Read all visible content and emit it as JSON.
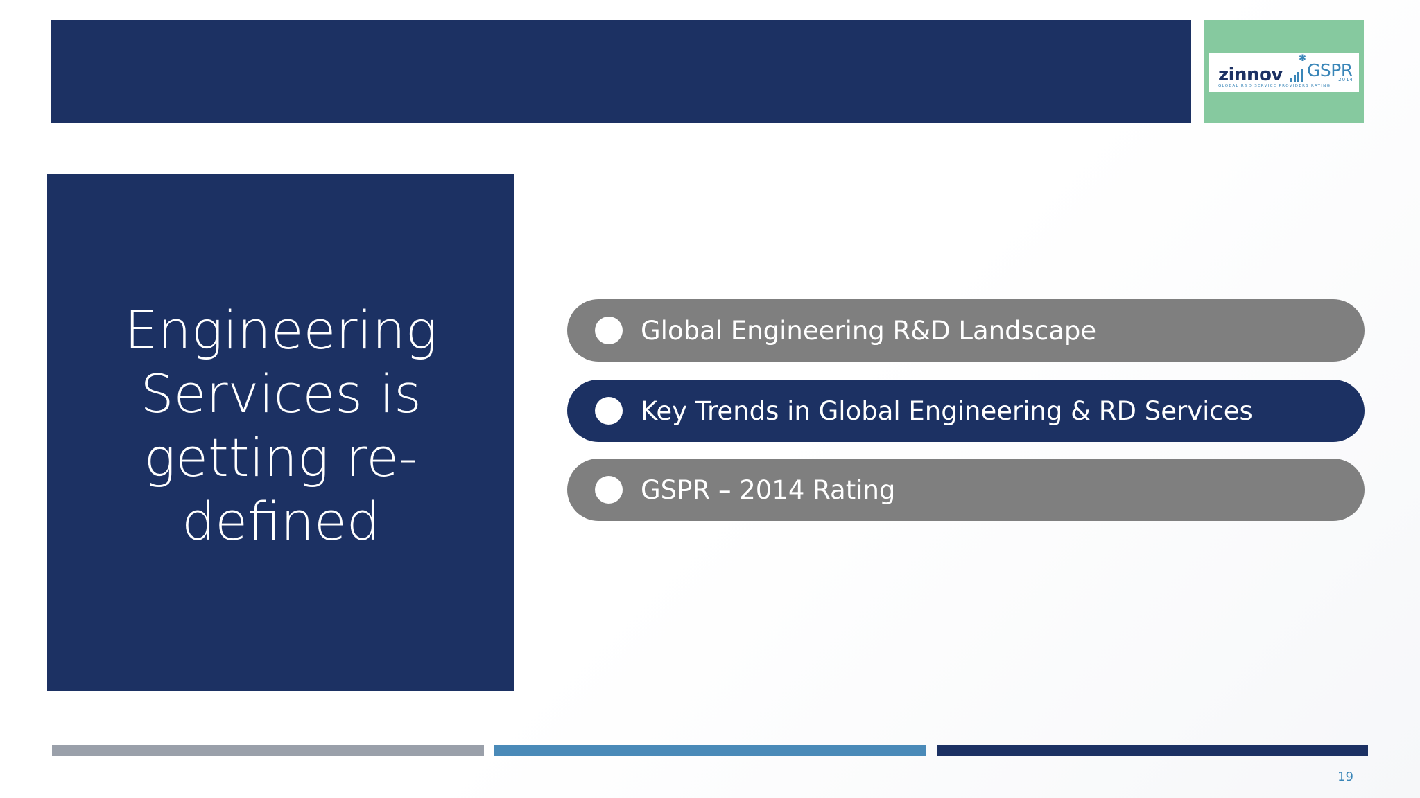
{
  "logo": {
    "brand": "zinnov",
    "product": "GSPR",
    "year": "2014",
    "tagline": "GLOBAL R&D SERVICE PROVIDERS RATING"
  },
  "title": "Engineering Services is getting re-defined",
  "agenda": [
    {
      "label": "Global Engineering R&D Landscape",
      "state": "inactive",
      "color": "#7f7f7f"
    },
    {
      "label": "Key Trends in Global Engineering & RD Services",
      "state": "active",
      "color": "#1c3163"
    },
    {
      "label": "GSPR – 2014 Rating",
      "state": "inactive",
      "color": "#7f7f7f"
    }
  ],
  "colors": {
    "navy": "#1c3163",
    "gray": "#7f7f7f",
    "green": "#86c99f",
    "blue": "#4a8ab8",
    "light_gray": "#9aa0aa"
  },
  "page_number": "19"
}
